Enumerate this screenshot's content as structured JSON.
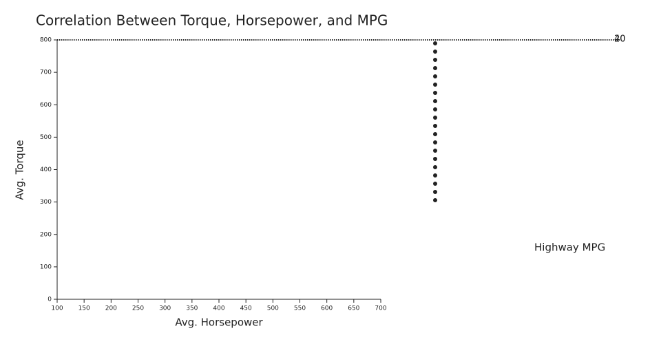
{
  "chart_data": {
    "type": "scatter",
    "title": "Correlation Between Torque, Horsepower, and MPG",
    "x_label": "Avg. Horsepower",
    "y_label": "Avg. Torque",
    "xlim": [
      100,
      700
    ],
    "xticks": [
      100,
      150,
      200,
      250,
      300,
      350,
      400,
      450,
      500,
      550,
      600,
      650,
      700
    ],
    "ylim": [
      0,
      800
    ],
    "yticks": [
      0,
      100,
      200,
      300,
      400,
      500,
      600,
      700,
      800
    ],
    "legend_title": "Highway MPG",
    "legend_ticks": [
      20,
      40
    ]
  }
}
